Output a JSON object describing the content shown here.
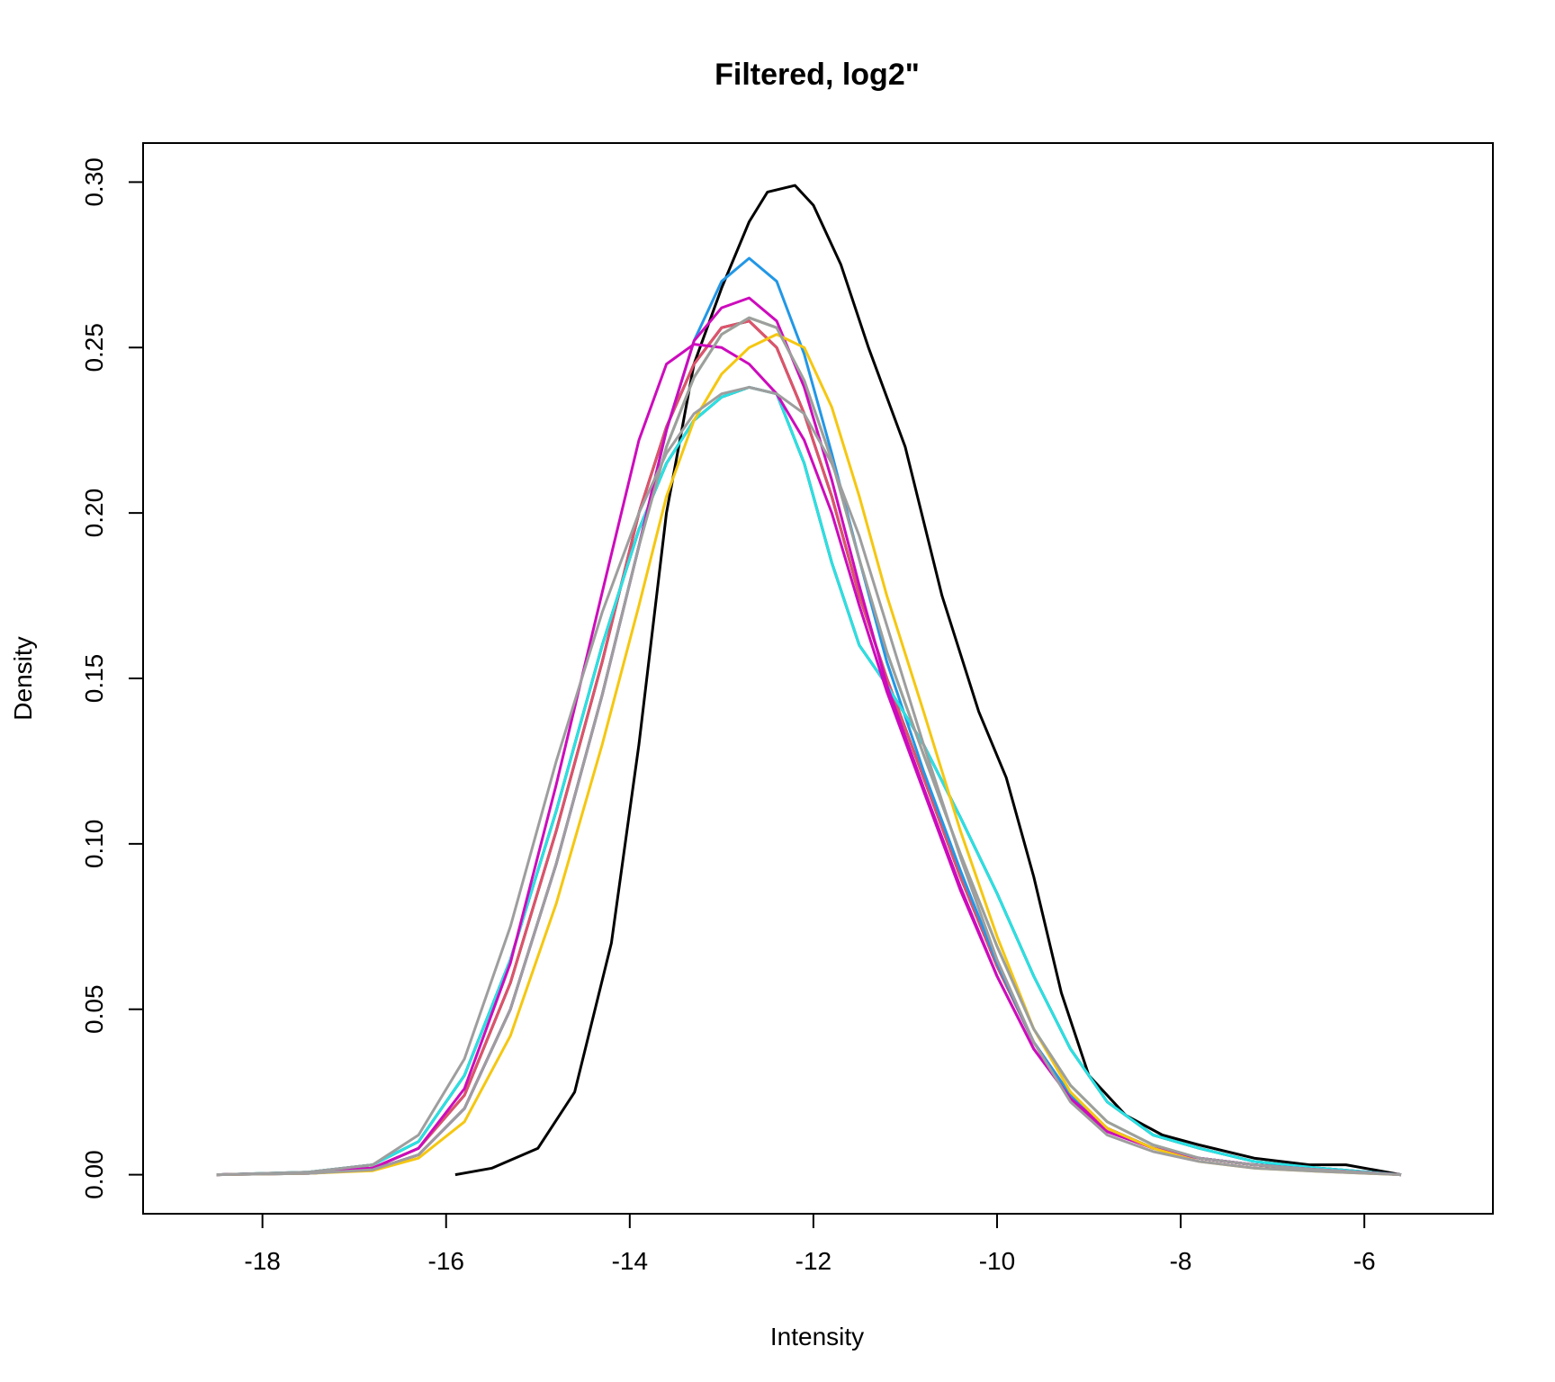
{
  "chart_data": {
    "type": "line",
    "title": "Filtered, log2\"",
    "xlabel": "Intensity",
    "ylabel": "Density",
    "xlim": [
      -19.3,
      -4.6
    ],
    "ylim": [
      -0.0118,
      0.3118
    ],
    "x_ticks": [
      -18,
      -16,
      -14,
      -12,
      -10,
      -8,
      -6
    ],
    "x_tick_labels": [
      "-18",
      "-16",
      "-14",
      "-12",
      "-10",
      "-8",
      "-6"
    ],
    "y_ticks": [
      0.0,
      0.05,
      0.1,
      0.15,
      0.2,
      0.25,
      0.3
    ],
    "y_tick_labels": [
      "0.00",
      "0.05",
      "0.10",
      "0.15",
      "0.20",
      "0.25",
      "0.30"
    ],
    "grid": false,
    "legend": "none",
    "series": [
      {
        "color": "#000000",
        "x": [
          -15.9,
          -15.5,
          -15.0,
          -14.6,
          -14.2,
          -13.9,
          -13.6,
          -13.3,
          -13.0,
          -12.7,
          -12.5,
          -12.2,
          -12.0,
          -11.7,
          -11.4,
          -11.0,
          -10.6,
          -10.2,
          -9.9,
          -9.6,
          -9.3,
          -9.0,
          -8.6,
          -8.2,
          -7.8,
          -7.2,
          -6.6,
          -6.2,
          -5.6
        ],
        "y": [
          0.0,
          0.002,
          0.008,
          0.025,
          0.07,
          0.13,
          0.2,
          0.245,
          0.268,
          0.288,
          0.297,
          0.299,
          0.293,
          0.275,
          0.25,
          0.22,
          0.175,
          0.14,
          0.12,
          0.09,
          0.055,
          0.03,
          0.018,
          0.012,
          0.009,
          0.005,
          0.003,
          0.003,
          0.0
        ]
      },
      {
        "color": "#000000",
        "x": [
          -18.5,
          -17.5,
          -16.8,
          -16.3,
          -15.8,
          -15.3,
          -14.8,
          -14.3,
          -13.9,
          -13.6,
          -13.3,
          -13.0,
          -12.7,
          -12.4,
          -12.1,
          -11.8,
          -11.5,
          -11.2,
          -10.8,
          -10.4,
          -10.0,
          -9.6,
          -9.2,
          -8.8,
          -8.3,
          -7.8,
          -7.2,
          -6.5,
          -5.6
        ],
        "y": [
          0.0,
          0.0008,
          0.003,
          0.01,
          0.03,
          0.065,
          0.11,
          0.16,
          0.195,
          0.215,
          0.228,
          0.235,
          0.238,
          0.236,
          0.215,
          0.185,
          0.16,
          0.148,
          0.13,
          0.108,
          0.085,
          0.06,
          0.038,
          0.022,
          0.012,
          0.008,
          0.004,
          0.002,
          0.0
        ]
      },
      {
        "color": "#000000",
        "x": [
          -18.5,
          -17.5,
          -16.8,
          -16.3,
          -15.8,
          -15.3,
          -14.8,
          -14.3,
          -13.9,
          -13.6,
          -13.3,
          -13.0,
          -12.7,
          -12.4,
          -12.1,
          -11.8,
          -11.5,
          -11.2,
          -10.8,
          -10.4,
          -10.0,
          -9.6,
          -9.2,
          -8.8,
          -8.3,
          -7.8,
          -7.2,
          -6.5,
          -5.6
        ],
        "y": [
          0.0,
          0.0006,
          0.002,
          0.008,
          0.024,
          0.058,
          0.104,
          0.155,
          0.2,
          0.226,
          0.245,
          0.256,
          0.258,
          0.25,
          0.23,
          0.205,
          0.175,
          0.15,
          0.12,
          0.09,
          0.063,
          0.04,
          0.024,
          0.014,
          0.008,
          0.005,
          0.003,
          0.0015,
          0.0
        ]
      },
      {
        "color": "#DF536B",
        "x": [
          -18.5,
          -17.5,
          -16.8,
          -16.3,
          -15.8,
          -15.3,
          -14.8,
          -14.3,
          -13.9,
          -13.6,
          -13.3,
          -13.0,
          -12.7,
          -12.4,
          -12.1,
          -11.8,
          -11.5,
          -11.2,
          -10.8,
          -10.4,
          -10.0,
          -9.6,
          -9.2,
          -8.8,
          -8.3,
          -7.8,
          -7.2,
          -6.5,
          -5.6
        ],
        "y": [
          0.0,
          0.0006,
          0.002,
          0.008,
          0.024,
          0.058,
          0.104,
          0.155,
          0.2,
          0.226,
          0.245,
          0.256,
          0.258,
          0.25,
          0.23,
          0.205,
          0.175,
          0.15,
          0.12,
          0.09,
          0.063,
          0.04,
          0.024,
          0.014,
          0.008,
          0.005,
          0.003,
          0.0015,
          0.0
        ]
      },
      {
        "color": "#61D04F",
        "x": [
          -18.5,
          -17.5,
          -16.8,
          -16.3,
          -15.8,
          -15.3,
          -14.8,
          -14.3,
          -13.9,
          -13.6,
          -13.3,
          -13.0,
          -12.7,
          -12.4,
          -12.1,
          -11.8,
          -11.5,
          -11.2,
          -10.8,
          -10.4,
          -10.0,
          -9.6,
          -9.2,
          -8.8,
          -8.3,
          -7.8,
          -7.2,
          -6.5,
          -5.6
        ],
        "y": [
          0.0,
          0.0004,
          0.0015,
          0.006,
          0.02,
          0.05,
          0.094,
          0.145,
          0.19,
          0.22,
          0.241,
          0.254,
          0.259,
          0.256,
          0.24,
          0.216,
          0.186,
          0.158,
          0.127,
          0.097,
          0.069,
          0.044,
          0.027,
          0.016,
          0.009,
          0.005,
          0.003,
          0.0015,
          0.0
        ]
      },
      {
        "color": "#2297E6",
        "x": [
          -18.5,
          -17.5,
          -16.8,
          -16.3,
          -15.8,
          -15.3,
          -14.8,
          -14.3,
          -13.9,
          -13.6,
          -13.3,
          -13.0,
          -12.7,
          -12.4,
          -12.1,
          -11.8,
          -11.5,
          -11.2,
          -10.8,
          -10.4,
          -10.0,
          -9.6,
          -9.2,
          -8.8,
          -8.3,
          -7.8,
          -7.2,
          -6.5,
          -5.6
        ],
        "y": [
          0.0,
          0.0004,
          0.0015,
          0.006,
          0.02,
          0.05,
          0.094,
          0.145,
          0.19,
          0.225,
          0.252,
          0.27,
          0.277,
          0.27,
          0.248,
          0.218,
          0.186,
          0.155,
          0.122,
          0.092,
          0.064,
          0.04,
          0.024,
          0.014,
          0.008,
          0.005,
          0.003,
          0.0015,
          0.0
        ]
      },
      {
        "color": "#28E2E5",
        "x": [
          -18.5,
          -17.5,
          -16.8,
          -16.3,
          -15.8,
          -15.3,
          -14.8,
          -14.3,
          -13.9,
          -13.6,
          -13.3,
          -13.0,
          -12.7,
          -12.4,
          -12.1,
          -11.8,
          -11.5,
          -11.2,
          -10.8,
          -10.4,
          -10.0,
          -9.6,
          -9.2,
          -8.8,
          -8.3,
          -7.8,
          -7.2,
          -6.5,
          -5.6
        ],
        "y": [
          0.0,
          0.0008,
          0.003,
          0.01,
          0.03,
          0.065,
          0.11,
          0.16,
          0.195,
          0.215,
          0.228,
          0.235,
          0.238,
          0.236,
          0.215,
          0.185,
          0.16,
          0.148,
          0.13,
          0.108,
          0.085,
          0.06,
          0.038,
          0.022,
          0.012,
          0.008,
          0.004,
          0.002,
          0.0
        ]
      },
      {
        "color": "#CD0BBC",
        "x": [
          -18.5,
          -17.5,
          -16.8,
          -16.3,
          -15.8,
          -15.3,
          -14.8,
          -14.3,
          -13.9,
          -13.6,
          -13.3,
          -13.0,
          -12.7,
          -12.4,
          -12.1,
          -11.8,
          -11.5,
          -11.2,
          -10.8,
          -10.4,
          -10.0,
          -9.6,
          -9.2,
          -8.8,
          -8.3,
          -7.8,
          -7.2,
          -6.5,
          -5.6
        ],
        "y": [
          0.0,
          0.0006,
          0.002,
          0.008,
          0.026,
          0.064,
          0.118,
          0.176,
          0.222,
          0.245,
          0.251,
          0.25,
          0.245,
          0.236,
          0.222,
          0.2,
          0.172,
          0.146,
          0.116,
          0.086,
          0.06,
          0.038,
          0.023,
          0.013,
          0.008,
          0.005,
          0.003,
          0.0015,
          0.0
        ]
      },
      {
        "color": "#CD0BBC",
        "x": [
          -18.5,
          -17.5,
          -16.8,
          -16.3,
          -15.8,
          -15.3,
          -14.8,
          -14.3,
          -13.9,
          -13.6,
          -13.3,
          -13.0,
          -12.7,
          -12.4,
          -12.1,
          -11.8,
          -11.5,
          -11.2,
          -10.8,
          -10.4,
          -10.0,
          -9.6,
          -9.2,
          -8.8,
          -8.3,
          -7.8,
          -7.2,
          -6.5,
          -5.6
        ],
        "y": [
          0.0,
          0.0004,
          0.0015,
          0.006,
          0.02,
          0.05,
          0.094,
          0.145,
          0.19,
          0.225,
          0.252,
          0.262,
          0.265,
          0.258,
          0.238,
          0.21,
          0.178,
          0.148,
          0.117,
          0.087,
          0.06,
          0.038,
          0.023,
          0.014,
          0.008,
          0.005,
          0.003,
          0.0015,
          0.0
        ]
      },
      {
        "color": "#F5C710",
        "x": [
          -18.5,
          -17.5,
          -16.8,
          -16.3,
          -15.8,
          -15.3,
          -14.8,
          -14.3,
          -13.9,
          -13.6,
          -13.3,
          -13.0,
          -12.7,
          -12.4,
          -12.1,
          -11.8,
          -11.5,
          -11.2,
          -10.8,
          -10.4,
          -10.0,
          -9.6,
          -9.2,
          -8.8,
          -8.3,
          -7.8,
          -7.2,
          -6.5,
          -5.6
        ],
        "y": [
          0.0,
          0.0004,
          0.0012,
          0.005,
          0.016,
          0.042,
          0.082,
          0.13,
          0.172,
          0.205,
          0.228,
          0.242,
          0.25,
          0.254,
          0.25,
          0.232,
          0.205,
          0.175,
          0.14,
          0.104,
          0.072,
          0.044,
          0.025,
          0.014,
          0.008,
          0.004,
          0.002,
          0.001,
          0.0
        ]
      },
      {
        "color": "#9E9E9E",
        "x": [
          -18.5,
          -17.5,
          -16.8,
          -16.3,
          -15.8,
          -15.3,
          -14.8,
          -14.3,
          -13.9,
          -13.6,
          -13.3,
          -13.0,
          -12.7,
          -12.4,
          -12.1,
          -11.8,
          -11.5,
          -11.2,
          -10.8,
          -10.4,
          -10.0,
          -9.6,
          -9.2,
          -8.8,
          -8.3,
          -7.8,
          -7.2,
          -6.5,
          -5.6
        ],
        "y": [
          0.0,
          0.0008,
          0.003,
          0.012,
          0.035,
          0.075,
          0.125,
          0.17,
          0.2,
          0.218,
          0.23,
          0.236,
          0.238,
          0.236,
          0.23,
          0.215,
          0.193,
          0.166,
          0.13,
          0.096,
          0.065,
          0.04,
          0.022,
          0.012,
          0.007,
          0.004,
          0.002,
          0.001,
          0.0
        ]
      },
      {
        "color": "#9E9E9E",
        "x": [
          -18.5,
          -17.5,
          -16.8,
          -16.3,
          -15.8,
          -15.3,
          -14.8,
          -14.3,
          -13.9,
          -13.6,
          -13.3,
          -13.0,
          -12.7,
          -12.4,
          -12.1,
          -11.8,
          -11.5,
          -11.2,
          -10.8,
          -10.4,
          -10.0,
          -9.6,
          -9.2,
          -8.8,
          -8.3,
          -7.8,
          -7.2,
          -6.5,
          -5.6
        ],
        "y": [
          0.0,
          0.0004,
          0.0015,
          0.006,
          0.02,
          0.05,
          0.094,
          0.145,
          0.19,
          0.22,
          0.241,
          0.254,
          0.259,
          0.256,
          0.24,
          0.216,
          0.186,
          0.158,
          0.127,
          0.097,
          0.069,
          0.044,
          0.027,
          0.016,
          0.009,
          0.005,
          0.003,
          0.0015,
          0.0
        ]
      }
    ]
  }
}
